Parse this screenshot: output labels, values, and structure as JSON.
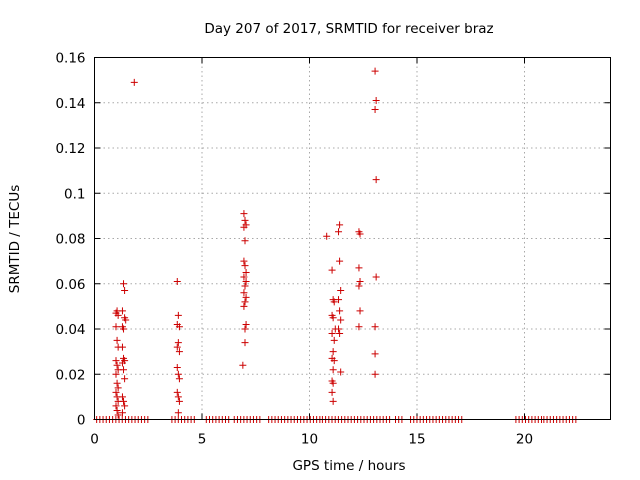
{
  "chart_data": {
    "type": "scatter",
    "title": "Day 207 of 2017, SRMTID for receiver braz",
    "xlabel": "GPS time / hours",
    "ylabel": "SRMTID / TECUs",
    "xlim": [
      0,
      24
    ],
    "ylim": [
      0,
      0.16
    ],
    "xticks": [
      0,
      5,
      10,
      15,
      20
    ],
    "xtick_labels": [
      "0",
      "5",
      "10",
      "15",
      "20"
    ],
    "yticks": [
      0,
      0.02,
      0.04,
      0.06,
      0.08,
      0.1,
      0.12,
      0.14,
      0.16
    ],
    "ytick_labels": [
      "0",
      "0.02",
      "0.04",
      "0.06",
      "0.08",
      "0.1",
      "0.12",
      "0.14",
      "0.16"
    ],
    "grid": true,
    "marker": "+",
    "color": "#cc0000",
    "series": [
      {
        "name": "SRMTID",
        "points": [
          [
            1.85,
            0.149
          ],
          [
            1.0,
            0.047
          ],
          [
            1.05,
            0.048
          ],
          [
            1.1,
            0.046
          ],
          [
            1.0,
            0.041
          ],
          [
            1.05,
            0.035
          ],
          [
            1.1,
            0.032
          ],
          [
            1.0,
            0.026
          ],
          [
            1.05,
            0.024
          ],
          [
            1.1,
            0.022
          ],
          [
            1.0,
            0.02
          ],
          [
            1.05,
            0.016
          ],
          [
            1.1,
            0.014
          ],
          [
            1.0,
            0.012
          ],
          [
            1.05,
            0.01
          ],
          [
            1.1,
            0.008
          ],
          [
            1.0,
            0.006
          ],
          [
            1.05,
            0.004
          ],
          [
            1.1,
            0.002
          ],
          [
            1.35,
            0.06
          ],
          [
            1.4,
            0.057
          ],
          [
            1.3,
            0.048
          ],
          [
            1.4,
            0.045
          ],
          [
            1.45,
            0.044
          ],
          [
            1.3,
            0.041
          ],
          [
            1.35,
            0.04
          ],
          [
            1.3,
            0.032
          ],
          [
            1.35,
            0.027
          ],
          [
            1.4,
            0.026
          ],
          [
            1.3,
            0.025
          ],
          [
            1.35,
            0.022
          ],
          [
            1.4,
            0.018
          ],
          [
            1.3,
            0.01
          ],
          [
            1.35,
            0.008
          ],
          [
            1.4,
            0.006
          ],
          [
            1.3,
            0.003
          ],
          [
            3.85,
            0.061
          ],
          [
            3.9,
            0.046
          ],
          [
            3.85,
            0.042
          ],
          [
            3.95,
            0.041
          ],
          [
            3.9,
            0.034
          ],
          [
            3.85,
            0.032
          ],
          [
            3.95,
            0.03
          ],
          [
            3.85,
            0.023
          ],
          [
            3.9,
            0.02
          ],
          [
            3.95,
            0.018
          ],
          [
            3.85,
            0.012
          ],
          [
            3.9,
            0.01
          ],
          [
            3.95,
            0.008
          ],
          [
            3.9,
            0.003
          ],
          [
            6.95,
            0.091
          ],
          [
            7.0,
            0.088
          ],
          [
            7.05,
            0.086
          ],
          [
            6.95,
            0.085
          ],
          [
            7.0,
            0.079
          ],
          [
            6.95,
            0.07
          ],
          [
            7.0,
            0.068
          ],
          [
            7.05,
            0.065
          ],
          [
            6.95,
            0.063
          ],
          [
            7.05,
            0.061
          ],
          [
            7.0,
            0.059
          ],
          [
            6.95,
            0.056
          ],
          [
            7.05,
            0.054
          ],
          [
            7.0,
            0.052
          ],
          [
            6.95,
            0.05
          ],
          [
            7.05,
            0.042
          ],
          [
            7.0,
            0.04
          ],
          [
            7.0,
            0.034
          ],
          [
            6.9,
            0.024
          ],
          [
            10.8,
            0.081
          ],
          [
            11.05,
            0.066
          ],
          [
            11.1,
            0.053
          ],
          [
            11.15,
            0.052
          ],
          [
            11.05,
            0.046
          ],
          [
            11.1,
            0.045
          ],
          [
            11.2,
            0.04
          ],
          [
            11.05,
            0.038
          ],
          [
            11.15,
            0.035
          ],
          [
            11.1,
            0.03
          ],
          [
            11.05,
            0.027
          ],
          [
            11.15,
            0.026
          ],
          [
            11.1,
            0.022
          ],
          [
            11.05,
            0.017
          ],
          [
            11.1,
            0.016
          ],
          [
            11.05,
            0.012
          ],
          [
            11.1,
            0.008
          ],
          [
            11.4,
            0.086
          ],
          [
            11.35,
            0.083
          ],
          [
            11.4,
            0.07
          ],
          [
            11.45,
            0.057
          ],
          [
            11.35,
            0.053
          ],
          [
            11.4,
            0.048
          ],
          [
            11.45,
            0.044
          ],
          [
            11.35,
            0.04
          ],
          [
            11.4,
            0.038
          ],
          [
            11.45,
            0.021
          ],
          [
            12.3,
            0.083
          ],
          [
            12.35,
            0.082
          ],
          [
            12.3,
            0.067
          ],
          [
            12.35,
            0.061
          ],
          [
            12.3,
            0.059
          ],
          [
            12.35,
            0.048
          ],
          [
            12.3,
            0.041
          ],
          [
            13.05,
            0.154
          ],
          [
            13.1,
            0.141
          ],
          [
            13.05,
            0.137
          ],
          [
            13.1,
            0.106
          ],
          [
            13.1,
            0.063
          ],
          [
            13.05,
            0.041
          ],
          [
            13.05,
            0.029
          ],
          [
            13.05,
            0.02
          ]
        ],
        "zero_segments": [
          [
            0.1,
            2.6
          ],
          [
            3.6,
            4.7
          ],
          [
            5.2,
            6.3
          ],
          [
            6.5,
            7.8
          ],
          [
            8.1,
            10.6
          ],
          [
            10.6,
            13.8
          ],
          [
            14.0,
            14.4
          ],
          [
            14.7,
            17.1
          ],
          [
            19.6,
            20.8
          ],
          [
            20.9,
            22.4
          ]
        ]
      }
    ]
  }
}
